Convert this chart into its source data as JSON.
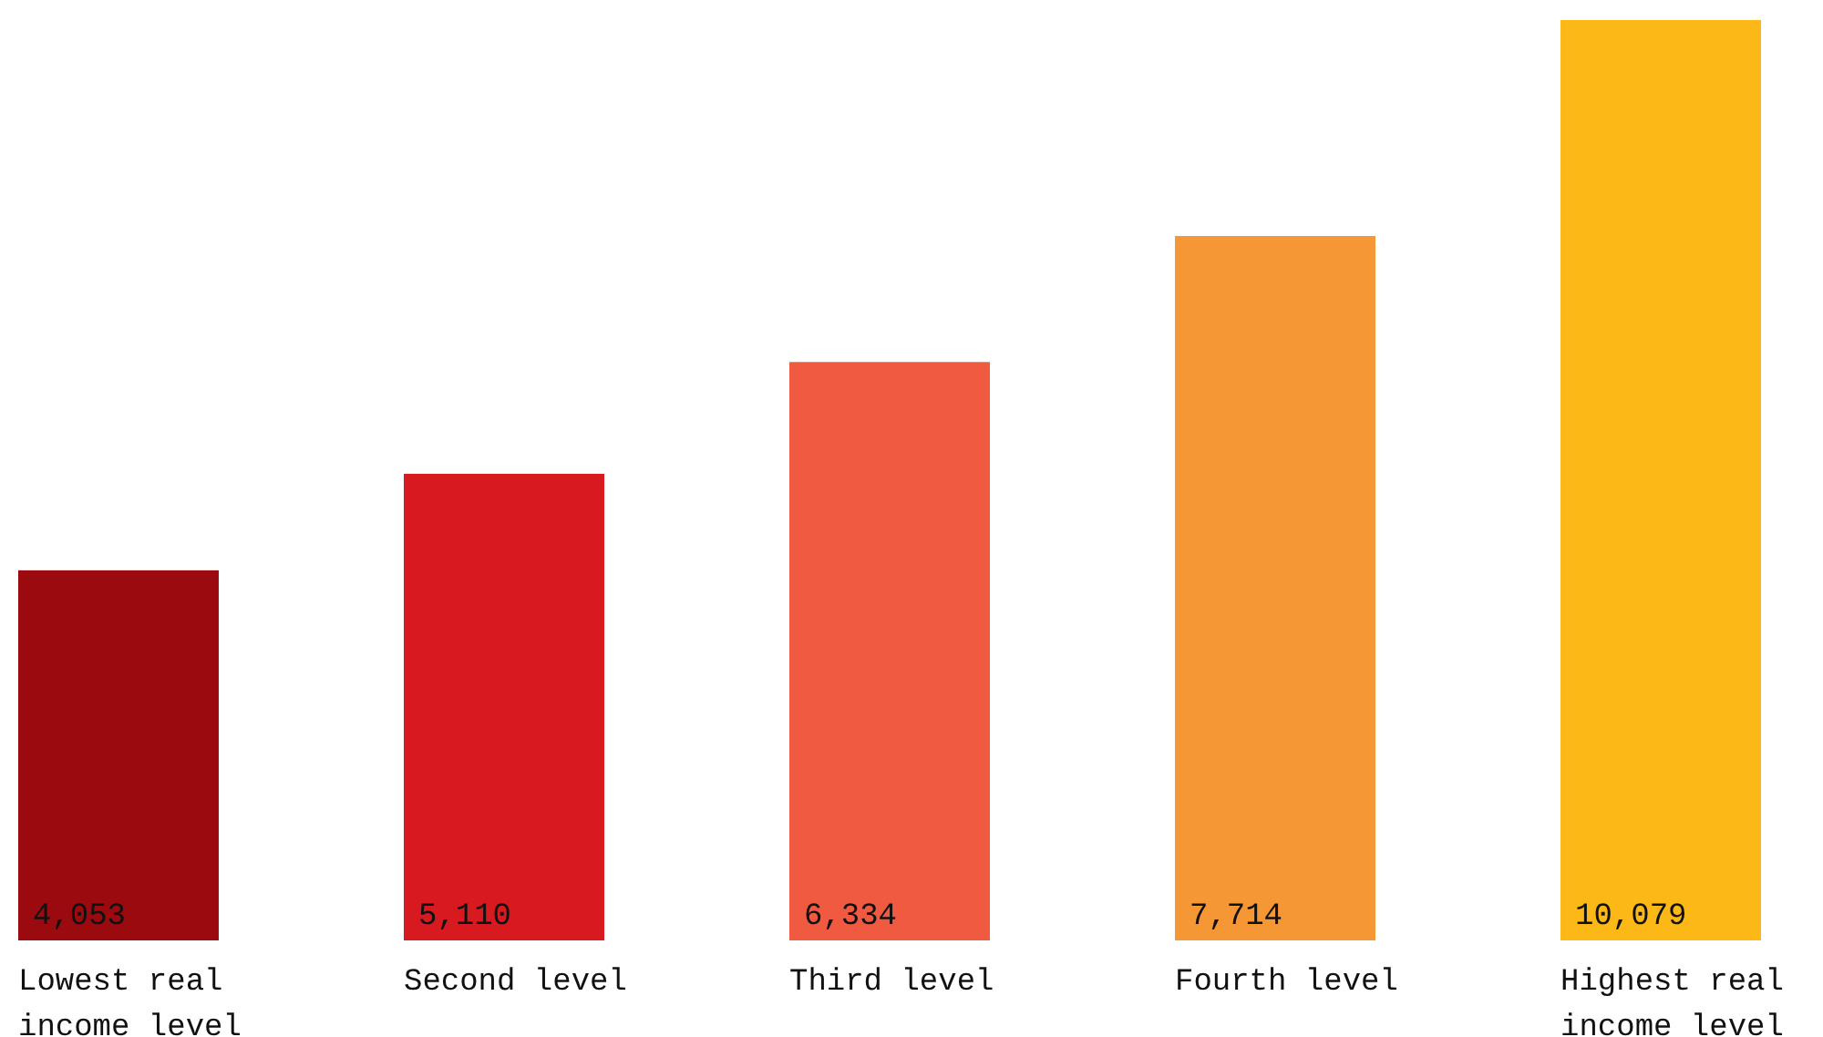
{
  "chart_data": {
    "type": "bar",
    "categories": [
      "Lowest real income level",
      "Second level",
      "Third level",
      "Fourth level",
      "Highest real income level"
    ],
    "values": [
      4053,
      5110,
      6334,
      7714,
      10079
    ],
    "colors": [
      "#9b0a0f",
      "#d71920",
      "#f05a40",
      "#f69735",
      "#fcb817"
    ],
    "value_labels": [
      "4,053",
      "5,110",
      "6,334",
      "7,714",
      "10,079"
    ]
  }
}
